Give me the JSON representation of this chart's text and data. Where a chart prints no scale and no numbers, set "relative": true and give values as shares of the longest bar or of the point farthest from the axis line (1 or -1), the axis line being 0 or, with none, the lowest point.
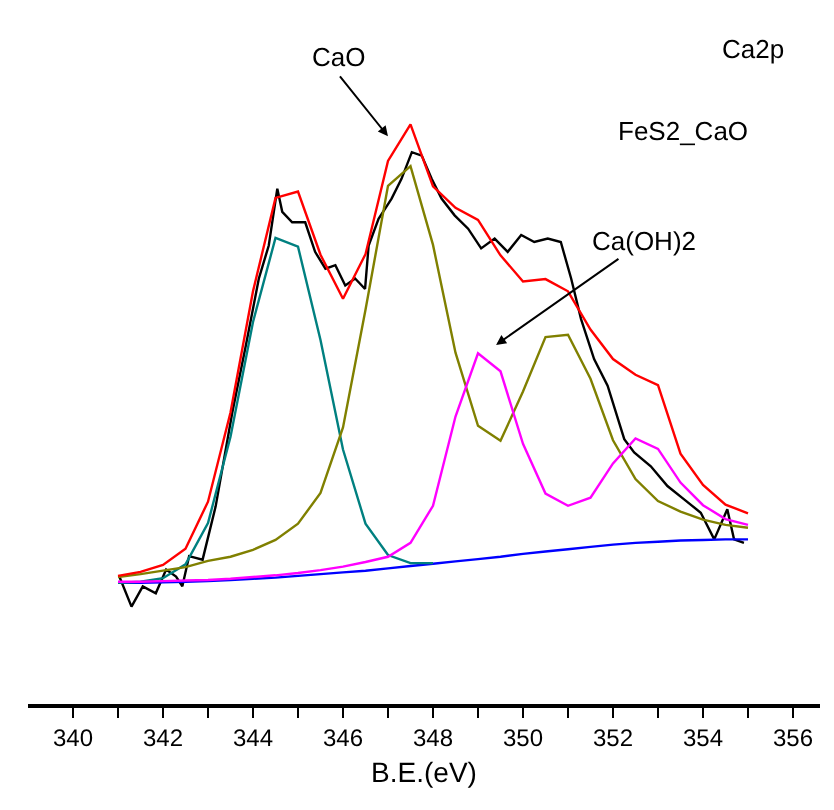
{
  "chart_data": {
    "type": "line",
    "xlabel": "B.E.(eV)",
    "relative": true,
    "marker": "none",
    "line_style": "solid",
    "xlim": [
      339,
      356.6
    ],
    "xticks": [
      340,
      {
        "value": 341,
        "label": null
      },
      342,
      {
        "value": 343,
        "label": null
      },
      344,
      {
        "value": 345,
        "label": null
      },
      346,
      {
        "value": 347,
        "label": null
      },
      348,
      {
        "value": 349,
        "label": null
      },
      350,
      {
        "value": 351,
        "label": null
      },
      352,
      {
        "value": 353,
        "label": null
      },
      354,
      {
        "value": 355,
        "label": null
      },
      356
    ],
    "x": [
      341,
      341.5,
      342,
      342.5,
      343,
      343.5,
      344,
      344.5,
      345,
      345.5,
      346,
      346.5,
      347,
      347.5,
      348,
      348.5,
      349,
      349.5,
      350,
      350.5,
      351,
      351.5,
      352,
      352.5,
      353,
      353.5,
      354,
      354.5,
      355
    ],
    "annotations": [
      "CaO",
      "Ca(OH)2",
      "Ca2p",
      "FeS2_CaO"
    ],
    "series": [
      {
        "color": "#000000",
        "x": [
          341.03,
          341.3,
          341.55,
          341.84,
          342.07,
          342.29,
          342.43,
          342.58,
          342.88,
          343.17,
          343.54,
          343.84,
          344.13,
          344.35,
          344.54,
          344.65,
          344.87,
          345.16,
          345.38,
          345.61,
          345.83,
          346.05,
          346.27,
          346.49,
          346.57,
          346.79,
          347.08,
          347.3,
          347.53,
          347.75,
          347.97,
          348.19,
          348.48,
          348.78,
          349.07,
          349.37,
          349.66,
          349.96,
          350.25,
          350.55,
          350.84,
          351.07,
          351.29,
          351.58,
          351.88,
          352.25,
          352.47,
          352.84,
          353.21,
          353.58,
          353.95,
          354.25,
          354.54,
          354.69,
          354.91
        ],
        "values": [
          0.22,
          0.168,
          0.203,
          0.191,
          0.232,
          0.22,
          0.203,
          0.255,
          0.249,
          0.341,
          0.503,
          0.618,
          0.734,
          0.791,
          0.889,
          0.849,
          0.831,
          0.831,
          0.78,
          0.751,
          0.757,
          0.722,
          0.734,
          0.716,
          0.791,
          0.837,
          0.872,
          0.906,
          0.952,
          0.946,
          0.906,
          0.872,
          0.843,
          0.82,
          0.786,
          0.803,
          0.78,
          0.809,
          0.797,
          0.803,
          0.797,
          0.734,
          0.664,
          0.595,
          0.549,
          0.457,
          0.434,
          0.41,
          0.376,
          0.353,
          0.33,
          0.284,
          0.336,
          0.284,
          0.278
        ]
      },
      {
        "color": "#0000ff",
        "values": [
          0.209,
          0.209,
          0.21,
          0.211,
          0.212,
          0.214,
          0.216,
          0.218,
          0.221,
          0.224,
          0.227,
          0.23,
          0.234,
          0.238,
          0.242,
          0.246,
          0.25,
          0.254,
          0.259,
          0.263,
          0.267,
          0.271,
          0.275,
          0.278,
          0.28,
          0.282,
          0.283,
          0.284,
          0.284
        ]
      },
      {
        "color": "#008080",
        "values": [
          0.209,
          0.211,
          0.217,
          0.241,
          0.312,
          0.461,
          0.659,
          0.804,
          0.789,
          0.628,
          0.439,
          0.311,
          0.257,
          0.243,
          0.243,
          null,
          null,
          null,
          null,
          null,
          null,
          null,
          null,
          null,
          null,
          null,
          null,
          null,
          null
        ]
      },
      {
        "color": "#808000",
        "values": [
          0.219,
          0.224,
          0.23,
          0.236,
          0.247,
          0.254,
          0.266,
          0.283,
          0.311,
          0.364,
          0.477,
          0.68,
          0.894,
          0.928,
          0.792,
          0.606,
          0.48,
          0.454,
          0.539,
          0.633,
          0.637,
          0.561,
          0.455,
          0.388,
          0.35,
          0.332,
          0.318,
          0.309,
          0.304
        ]
      },
      {
        "color": "#ff00ff",
        "values": [
          0.211,
          0.211,
          0.212,
          0.213,
          0.214,
          0.216,
          0.219,
          0.222,
          0.226,
          0.231,
          0.237,
          0.245,
          0.254,
          0.278,
          0.342,
          0.496,
          0.605,
          0.574,
          0.449,
          0.363,
          0.342,
          0.356,
          0.415,
          0.458,
          0.44,
          0.382,
          0.343,
          0.319,
          0.309
        ]
      },
      {
        "color": "#ff0000",
        "values": [
          0.221,
          0.228,
          0.24,
          0.268,
          0.349,
          0.503,
          0.712,
          0.873,
          0.884,
          0.775,
          0.699,
          0.776,
          0.937,
          1.0,
          0.893,
          0.856,
          0.835,
          0.774,
          0.729,
          0.733,
          0.712,
          0.646,
          0.595,
          0.568,
          0.55,
          0.432,
          0.378,
          0.344,
          0.329
        ]
      }
    ]
  }
}
